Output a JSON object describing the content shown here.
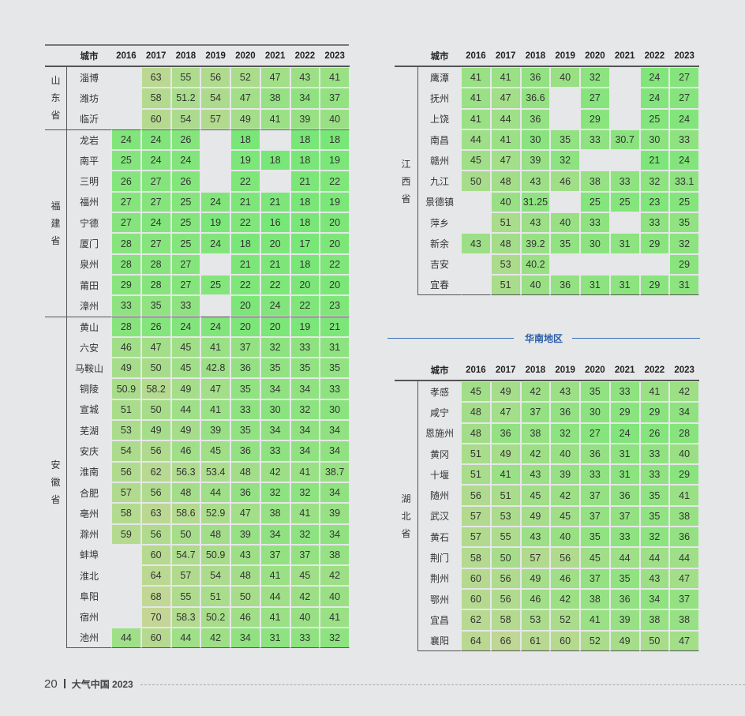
{
  "header": {
    "city": "城市",
    "years": [
      "2016",
      "2017",
      "2018",
      "2019",
      "2020",
      "2021",
      "2022",
      "2023"
    ]
  },
  "region_title": "华南地区",
  "footer": {
    "page": "20",
    "publication": "大气中国 2023"
  },
  "tables": [
    {
      "id": "left",
      "groups": [
        {
          "province": "山东省",
          "rows": [
            [
              "淄博",
              "",
              "63",
              "55",
              "56",
              "52",
              "47",
              "43",
              "41"
            ],
            [
              "潍坊",
              "",
              "58",
              "51.2",
              "54",
              "47",
              "38",
              "34",
              "37"
            ],
            [
              "临沂",
              "",
              "60",
              "54",
              "57",
              "49",
              "41",
              "39",
              "40"
            ]
          ]
        },
        {
          "province": "福建省",
          "rows": [
            [
              "龙岩",
              "24",
              "24",
              "26",
              "",
              "18",
              "",
              "18",
              "18"
            ],
            [
              "南平",
              "25",
              "24",
              "24",
              "",
              "19",
              "18",
              "18",
              "19"
            ],
            [
              "三明",
              "26",
              "27",
              "26",
              "",
              "22",
              "",
              "21",
              "22"
            ],
            [
              "福州",
              "27",
              "27",
              "25",
              "24",
              "21",
              "21",
              "18",
              "19"
            ],
            [
              "宁德",
              "27",
              "24",
              "25",
              "19",
              "22",
              "16",
              "18",
              "20"
            ],
            [
              "厦门",
              "28",
              "27",
              "25",
              "24",
              "18",
              "20",
              "17",
              "20"
            ],
            [
              "泉州",
              "28",
              "28",
              "27",
              "",
              "21",
              "21",
              "18",
              "22"
            ],
            [
              "莆田",
              "29",
              "28",
              "27",
              "25",
              "22",
              "22",
              "20",
              "20"
            ],
            [
              "漳州",
              "33",
              "35",
              "33",
              "",
              "20",
              "24",
              "22",
              "23"
            ]
          ]
        },
        {
          "province": "安徽省",
          "rows": [
            [
              "黄山",
              "28",
              "26",
              "24",
              "24",
              "20",
              "20",
              "19",
              "21"
            ],
            [
              "六安",
              "46",
              "47",
              "45",
              "41",
              "37",
              "32",
              "33",
              "31"
            ],
            [
              "马鞍山",
              "49",
              "50",
              "45",
              "42.8",
              "36",
              "35",
              "35",
              "35"
            ],
            [
              "铜陵",
              "50.9",
              "58.2",
              "49",
              "47",
              "35",
              "34",
              "34",
              "33"
            ],
            [
              "宣城",
              "51",
              "50",
              "44",
              "41",
              "33",
              "30",
              "32",
              "30"
            ],
            [
              "芜湖",
              "53",
              "49",
              "49",
              "39",
              "35",
              "34",
              "34",
              "34"
            ],
            [
              "安庆",
              "54",
              "56",
              "46",
              "45",
              "36",
              "33",
              "34",
              "34"
            ],
            [
              "淮南",
              "56",
              "62",
              "56.3",
              "53.4",
              "48",
              "42",
              "41",
              "38.7"
            ],
            [
              "合肥",
              "57",
              "56",
              "48",
              "44",
              "36",
              "32",
              "32",
              "34"
            ],
            [
              "亳州",
              "58",
              "63",
              "58.6",
              "52.9",
              "47",
              "38",
              "41",
              "39"
            ],
            [
              "滁州",
              "59",
              "56",
              "50",
              "48",
              "39",
              "34",
              "32",
              "34"
            ],
            [
              "蚌埠",
              "",
              "60",
              "54.7",
              "50.9",
              "43",
              "37",
              "37",
              "38"
            ],
            [
              "淮北",
              "",
              "64",
              "57",
              "54",
              "48",
              "41",
              "45",
              "42"
            ],
            [
              "阜阳",
              "",
              "68",
              "55",
              "51",
              "50",
              "44",
              "42",
              "40"
            ],
            [
              "宿州",
              "",
              "70",
              "58.3",
              "50.2",
              "46",
              "41",
              "40",
              "41"
            ],
            [
              "池州",
              "44",
              "60",
              "44",
              "42",
              "34",
              "31",
              "33",
              "32"
            ]
          ]
        }
      ]
    },
    {
      "id": "right-top",
      "groups": [
        {
          "province": "江西省",
          "rows": [
            [
              "鹰潭",
              "41",
              "41",
              "36",
              "40",
              "32",
              "",
              "24",
              "27"
            ],
            [
              "抚州",
              "41",
              "47",
              "36.6",
              "",
              "27",
              "",
              "24",
              "27"
            ],
            [
              "上饶",
              "41",
              "44",
              "36",
              "",
              "29",
              "",
              "25",
              "24"
            ],
            [
              "南昌",
              "44",
              "41",
              "30",
              "35",
              "33",
              "30.7",
              "30",
              "33"
            ],
            [
              "赣州",
              "45",
              "47",
              "39",
              "32",
              "",
              "",
              "21",
              "24"
            ],
            [
              "九江",
              "50",
              "48",
              "43",
              "46",
              "38",
              "33",
              "32",
              "33.1"
            ],
            [
              "景德镇",
              "",
              "40",
              "31.25",
              "",
              "25",
              "25",
              "23",
              "25"
            ],
            [
              "萍乡",
              "",
              "51",
              "43",
              "40",
              "33",
              "",
              "33",
              "35"
            ],
            [
              "新余",
              "43",
              "48",
              "39.2",
              "35",
              "30",
              "31",
              "29",
              "32"
            ],
            [
              "吉安",
              "",
              "53",
              "40.2",
              "",
              "",
              "",
              "",
              "29"
            ],
            [
              "宜春",
              "",
              "51",
              "40",
              "36",
              "31",
              "31",
              "29",
              "31"
            ]
          ]
        }
      ]
    },
    {
      "id": "right-bottom",
      "groups": [
        {
          "province": "湖北省",
          "rows": [
            [
              "孝感",
              "45",
              "49",
              "42",
              "43",
              "35",
              "33",
              "41",
              "42"
            ],
            [
              "咸宁",
              "48",
              "47",
              "37",
              "36",
              "30",
              "29",
              "29",
              "34"
            ],
            [
              "恩施州",
              "48",
              "36",
              "38",
              "32",
              "27",
              "24",
              "26",
              "28"
            ],
            [
              "黄冈",
              "51",
              "49",
              "42",
              "40",
              "36",
              "31",
              "33",
              "40"
            ],
            [
              "十堰",
              "51",
              "41",
              "43",
              "39",
              "33",
              "31",
              "33",
              "29"
            ],
            [
              "随州",
              "56",
              "51",
              "45",
              "42",
              "37",
              "36",
              "35",
              "41"
            ],
            [
              "武汉",
              "57",
              "53",
              "49",
              "45",
              "37",
              "37",
              "35",
              "38"
            ],
            [
              "黄石",
              "57",
              "55",
              "43",
              "40",
              "35",
              "33",
              "32",
              "36"
            ],
            [
              "荆门",
              "58",
              "50",
              "57",
              "56",
              "45",
              "44",
              "44",
              "44"
            ],
            [
              "荆州",
              "60",
              "56",
              "49",
              "46",
              "37",
              "35",
              "43",
              "47"
            ],
            [
              "鄂州",
              "60",
              "56",
              "46",
              "42",
              "38",
              "36",
              "34",
              "37"
            ],
            [
              "宜昌",
              "62",
              "58",
              "53",
              "52",
              "41",
              "39",
              "38",
              "38"
            ],
            [
              "襄阳",
              "64",
              "66",
              "61",
              "60",
              "52",
              "49",
              "50",
              "47"
            ]
          ]
        }
      ]
    }
  ]
}
